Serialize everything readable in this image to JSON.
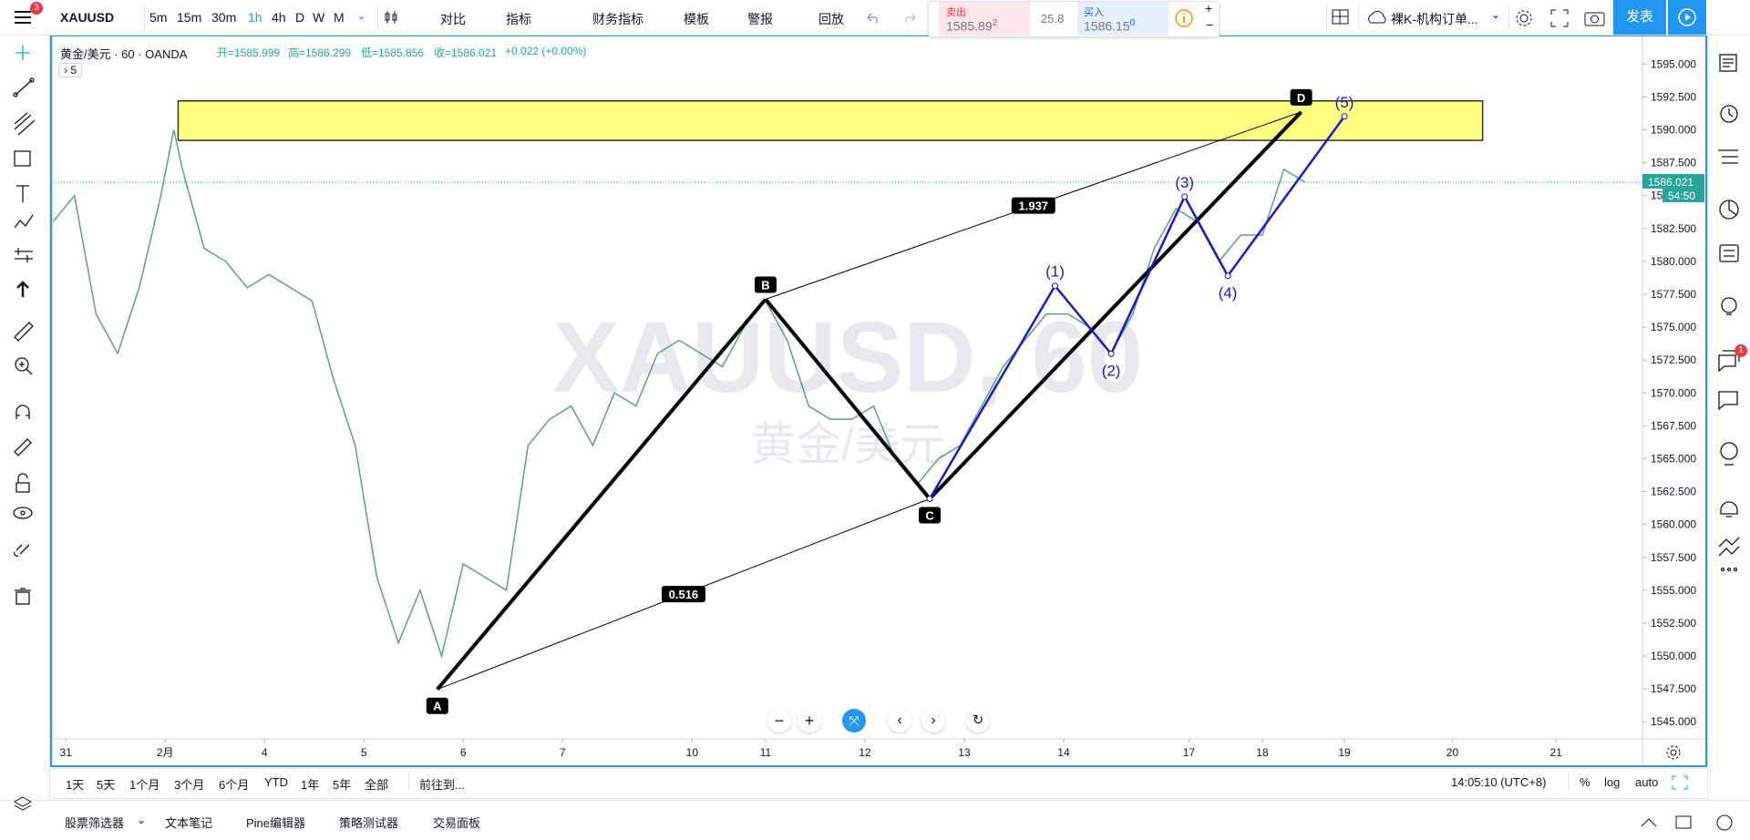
{
  "toolbar": {
    "badge": 3,
    "symbol": "XAUUSD",
    "intervals": [
      "5m",
      "15m",
      "30m",
      "1h",
      "4h",
      "D",
      "W",
      "M"
    ],
    "buttons": [
      "对比",
      "指标",
      "财务指标",
      "模板",
      "警报",
      "回放"
    ],
    "sell": {
      "label": "卖出",
      "price": 1585.89,
      "pip": 2
    },
    "spread": 25.8,
    "buy": {
      "label": "买入",
      "price": 1586.15,
      "pip": 0
    },
    "layout": "裸K-机构订单...",
    "publish": "发表"
  },
  "legend": {
    "name": "黄金/美元 · 60 · OANDA",
    "open": "开=1585.999",
    "high": "高=1586.299",
    "low": "低=1585.856",
    "close": "收=1586.021",
    "change": "+0.022 (+0.00%)",
    "collapsed": "› 5"
  },
  "sidebar": {
    "badge": 1
  },
  "chart_data": {
    "type": "line",
    "watermark": [
      "XAUUSD, 60",
      "黄金/美元"
    ],
    "xlim": [
      0,
      368
    ],
    "xticks": [
      {
        "value": 3,
        "label": "31"
      },
      {
        "value": 26,
        "label": "2月"
      },
      {
        "value": 49,
        "label": "4"
      },
      {
        "value": 72,
        "label": "5"
      },
      {
        "value": 95,
        "label": "6"
      },
      {
        "value": 118,
        "label": "7"
      },
      {
        "value": 148,
        "label": "10"
      },
      {
        "value": 165,
        "label": "11"
      },
      {
        "value": 188,
        "label": "12"
      },
      {
        "value": 211,
        "label": "13"
      },
      {
        "value": 234,
        "label": "14"
      },
      {
        "value": 263,
        "label": "17"
      },
      {
        "value": 280,
        "label": "18"
      },
      {
        "value": 299,
        "label": "19"
      },
      {
        "value": 324,
        "label": "20"
      },
      {
        "value": 348,
        "label": "21"
      }
    ],
    "ylim": [
      1543.7,
      1597.1
    ],
    "yticks": [
      {
        "value": 1545,
        "label": "1545.000"
      },
      {
        "value": 1547.5,
        "label": "1547.500"
      },
      {
        "value": 1550,
        "label": "1550.000"
      },
      {
        "value": 1552.5,
        "label": "1552.500"
      },
      {
        "value": 1555,
        "label": "1555.000"
      },
      {
        "value": 1557.5,
        "label": "1557.500"
      },
      {
        "value": 1560,
        "label": "1560.000"
      },
      {
        "value": 1562.5,
        "label": "1562.500"
      },
      {
        "value": 1565,
        "label": "1565.000"
      },
      {
        "value": 1567.5,
        "label": "1567.500"
      },
      {
        "value": 1570,
        "label": "1570.000"
      },
      {
        "value": 1572.5,
        "label": "1572.500"
      },
      {
        "value": 1575,
        "label": "1575.000"
      },
      {
        "value": 1577.5,
        "label": "1577.500"
      },
      {
        "value": 1580,
        "label": "1580.000"
      },
      {
        "value": 1582.5,
        "label": "1582.500"
      },
      {
        "value": 1585,
        "label": "1585.000"
      },
      {
        "value": 1587.5,
        "label": "1587.500"
      },
      {
        "value": 1590,
        "label": "1590.000"
      },
      {
        "value": 1592.5,
        "label": "1592.500"
      },
      {
        "value": 1595,
        "label": "1595.000"
      }
    ],
    "x": [
      0,
      5,
      10,
      15,
      20,
      25,
      28,
      30,
      35,
      40,
      45,
      50,
      55,
      60,
      65,
      70,
      75,
      80,
      85,
      90,
      95,
      100,
      105,
      110,
      115,
      120,
      125,
      130,
      135,
      140,
      145,
      150,
      155,
      160,
      165,
      170,
      175,
      180,
      185,
      190,
      195,
      200,
      205,
      210,
      215,
      220,
      225,
      230,
      235,
      240,
      245,
      250,
      255,
      260,
      265,
      270,
      275,
      280,
      285,
      290
    ],
    "series": [
      {
        "color": "#5d9e8f",
        "values": [
          1583,
          1585,
          1576,
          1573,
          1578,
          1585,
          1590,
          1587,
          1581,
          1580,
          1578,
          1579,
          1578,
          1577,
          1571,
          1566,
          1556,
          1551,
          1555,
          1550,
          1557,
          1556,
          1555,
          1566,
          1568,
          1569,
          1566,
          1570,
          1569,
          1573,
          1574,
          1573,
          1572,
          1575,
          1577,
          1574,
          1569,
          1568,
          1568,
          1569,
          1565,
          1563,
          1565,
          1566,
          1569,
          1572,
          1574,
          1576,
          1576,
          1575,
          1573,
          1576,
          1581,
          1584,
          1583,
          1580,
          1582,
          1582,
          1587,
          1586
        ]
      }
    ],
    "zone": {
      "x": [
        29,
        331
      ],
      "y": [
        1589.2,
        1592.2
      ],
      "color": "#ffff80"
    },
    "pattern": {
      "color": "#000000",
      "x": [
        89,
        165,
        203,
        289
      ],
      "y": [
        1547.46,
        1577.12,
        1561.95,
        1591.36
      ],
      "labels": [
        "A",
        "B",
        "C",
        "D"
      ],
      "ratios": [
        0.516,
        1.937
      ]
    },
    "waves": {
      "color": "#1a1acc",
      "x": [
        203,
        232,
        245,
        262,
        272,
        299
      ],
      "y": [
        1561.95,
        1578.14,
        1572.97,
        1584.92,
        1578.9,
        1591.02
      ],
      "labels": [
        null,
        "(1)",
        "(2)",
        "(3)",
        "(4)",
        "(5)"
      ]
    },
    "last_price": 1586.021,
    "countdown": "54:50"
  },
  "range_bar": {
    "ranges": [
      "1天",
      "5天",
      "1个月",
      "3个月",
      "6个月",
      "YTD",
      "1年",
      "5年",
      "全部"
    ],
    "goto": "前往到...",
    "clock": "14:05:10 (UTC+8)",
    "percent": "%",
    "log": "log",
    "auto": "auto"
  },
  "tabs": [
    "股票筛选器",
    "文本笔记",
    "Pine编辑器",
    "策略测试器",
    "交易面板"
  ]
}
